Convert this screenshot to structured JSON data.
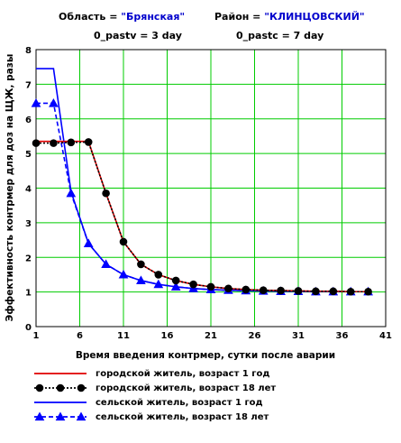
{
  "header": {
    "region_label": "Область =",
    "region_value": "\"Брянская\"",
    "district_label": "Район =",
    "district_value": "\"КЛИНЦОВСКИЙ\"",
    "pastv": "0_pastv = 3  day",
    "pastc": "0_pastc = 7  day"
  },
  "chart_data": {
    "type": "line",
    "title": "",
    "xlabel": "Время введения контрмер, сутки после аварии",
    "ylabel": "Эффективность контрмер для доз на ЩЖ, разы",
    "xlim": [
      1,
      41
    ],
    "ylim": [
      0,
      8
    ],
    "xticks": [
      1,
      6,
      11,
      16,
      21,
      26,
      31,
      36,
      41
    ],
    "yticks": [
      0,
      1,
      2,
      3,
      4,
      5,
      6,
      7,
      8
    ],
    "grid": true,
    "legend_position": "bottom",
    "series": [
      {
        "name": "городской житель, возраст 1 год",
        "color": "#e00000",
        "style": "solid",
        "marker": "none",
        "x": [
          1,
          7,
          9,
          11,
          13,
          15,
          17,
          19,
          21,
          23,
          25,
          27,
          29,
          31,
          33,
          35,
          37,
          39
        ],
        "y": [
          5.35,
          5.35,
          3.85,
          2.45,
          1.8,
          1.5,
          1.33,
          1.22,
          1.15,
          1.1,
          1.07,
          1.05,
          1.04,
          1.03,
          1.02,
          1.02,
          1.01,
          1.01
        ]
      },
      {
        "name": "городской житель, возраст 18 лет",
        "color": "#000000",
        "style": "dotted",
        "marker": "circle",
        "x": [
          1,
          3,
          5,
          7,
          9,
          11,
          13,
          15,
          17,
          19,
          21,
          23,
          25,
          27,
          29,
          31,
          33,
          35,
          37,
          39
        ],
        "y": [
          5.3,
          5.3,
          5.32,
          5.33,
          3.85,
          2.45,
          1.8,
          1.5,
          1.33,
          1.22,
          1.15,
          1.1,
          1.07,
          1.05,
          1.04,
          1.03,
          1.02,
          1.02,
          1.01,
          1.01
        ]
      },
      {
        "name": "сельской житель, возраст 1 год",
        "color": "#0000ff",
        "style": "solid",
        "marker": "none",
        "x": [
          1,
          3,
          5,
          7,
          9,
          11,
          13,
          15,
          17,
          19,
          21,
          23,
          25,
          27,
          29,
          31,
          33,
          35,
          37,
          39
        ],
        "y": [
          7.45,
          7.45,
          3.9,
          2.4,
          1.8,
          1.5,
          1.33,
          1.22,
          1.15,
          1.1,
          1.07,
          1.05,
          1.04,
          1.03,
          1.02,
          1.02,
          1.01,
          1.01,
          1.01,
          1.01
        ]
      },
      {
        "name": "сельской житель, возраст 18 лет",
        "color": "#0000ff",
        "style": "dashed",
        "marker": "triangle",
        "x": [
          1,
          3,
          5,
          7,
          9,
          11,
          13,
          15,
          17,
          19,
          21,
          23,
          25,
          27,
          29,
          31,
          33,
          35,
          37,
          39
        ],
        "y": [
          6.45,
          6.45,
          3.85,
          2.4,
          1.8,
          1.5,
          1.33,
          1.22,
          1.15,
          1.1,
          1.07,
          1.05,
          1.04,
          1.03,
          1.02,
          1.02,
          1.01,
          1.01,
          1.01,
          1.01
        ]
      }
    ]
  }
}
